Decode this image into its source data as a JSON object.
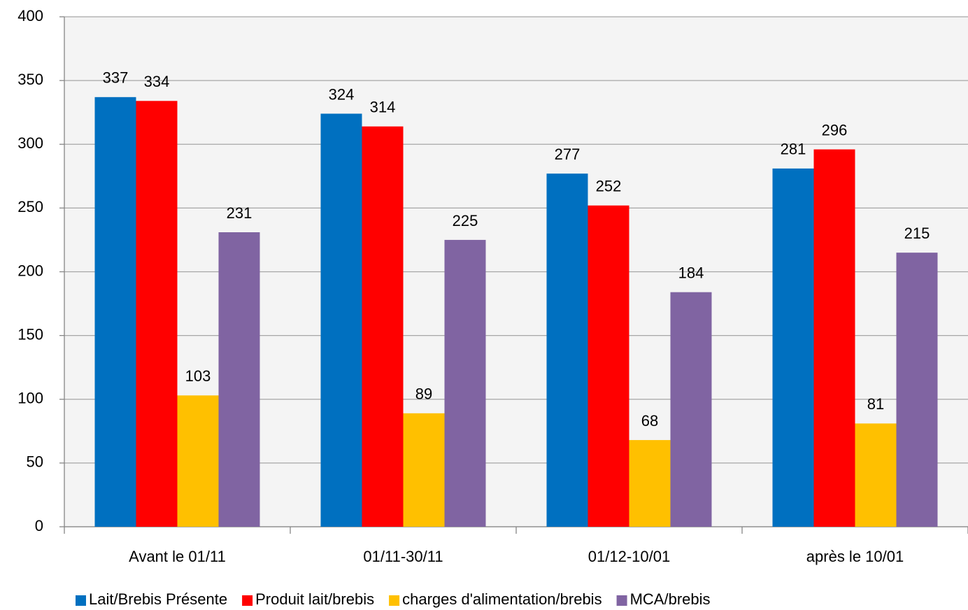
{
  "chart_data": {
    "type": "bar",
    "categories": [
      "Avant le 01/11",
      "01/11-30/11",
      "01/12-10/01",
      "après le 10/01"
    ],
    "series": [
      {
        "name": "Lait/Brebis Présente",
        "color": "#0070c0",
        "values": [
          337,
          324,
          277,
          281
        ]
      },
      {
        "name": "Produit lait/brebis",
        "color": "#ff0000",
        "values": [
          334,
          314,
          252,
          296
        ]
      },
      {
        "name": "charges d'alimentation/brebis",
        "color": "#ffc000",
        "values": [
          103,
          89,
          68,
          81
        ]
      },
      {
        "name": "MCA/brebis",
        "color": "#8064a2",
        "values": [
          231,
          225,
          184,
          215
        ]
      }
    ],
    "ylim": [
      0,
      400
    ],
    "yticks": [
      0,
      50,
      100,
      150,
      200,
      250,
      300,
      350,
      400
    ],
    "grid": true,
    "legend": "bottom"
  }
}
